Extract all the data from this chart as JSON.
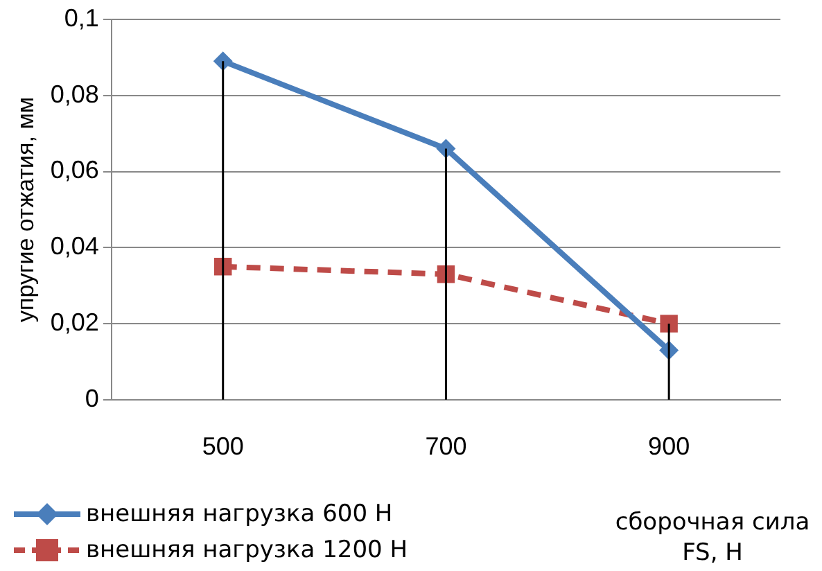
{
  "chart_data": {
    "type": "line",
    "xlabel": "сборочная сила FS, Н",
    "ylabel": "упругие отжатия, мм",
    "categories": [
      "500",
      "700",
      "900"
    ],
    "series": [
      {
        "name": "внешняя нагрузка 600 Н",
        "color": "#4a7ebb",
        "values": [
          0.089,
          0.066,
          0.013
        ],
        "marker": "diamond",
        "line_style": "solid",
        "errors": [
          [
            0.089,
            0
          ],
          [
            0.066,
            0
          ],
          null
        ]
      },
      {
        "name": "внешняя нагрузка 1200 Н",
        "color": "#be4b48",
        "values": [
          0.035,
          0.033,
          0.02
        ],
        "marker": "square",
        "line_style": "dashed",
        "errors": [
          null,
          null,
          [
            0.02,
            0
          ]
        ]
      }
    ],
    "ylim": [
      0,
      0.1
    ],
    "yticks": [
      {
        "value": 0,
        "label": "0"
      },
      {
        "value": 0.02,
        "label": "0,02"
      },
      {
        "value": 0.04,
        "label": "0,04"
      },
      {
        "value": 0.06,
        "label": "0,06"
      },
      {
        "value": 0.08,
        "label": "0,08"
      },
      {
        "value": 0.1,
        "label": "0,1"
      }
    ],
    "grid": "y",
    "legend": "bottom left"
  }
}
